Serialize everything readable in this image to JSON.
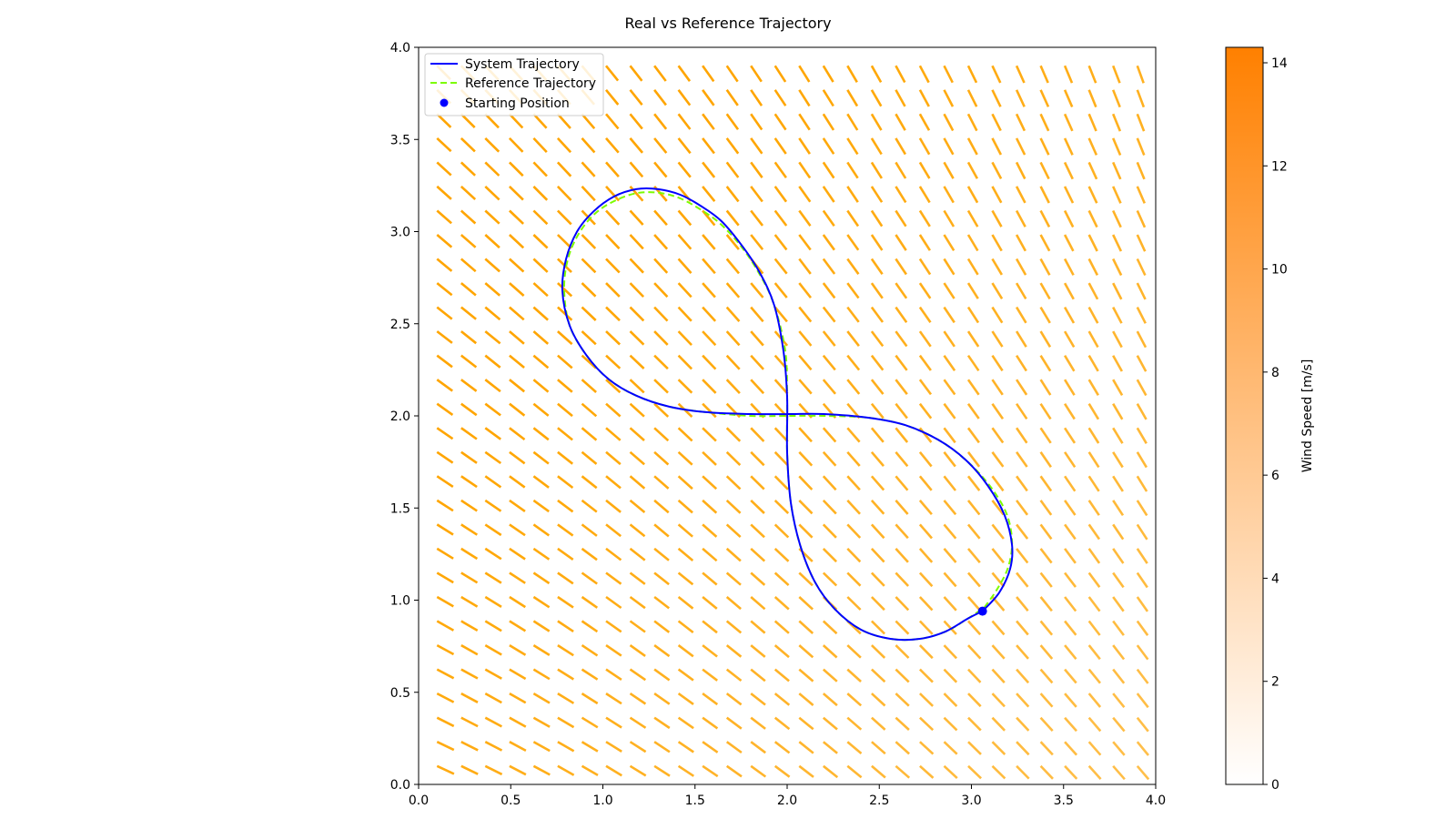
{
  "chart_data": {
    "type": "line",
    "title": "Real vs Reference Trajectory",
    "xlabel": "",
    "ylabel": "",
    "xlim": [
      0.0,
      4.0
    ],
    "ylim": [
      0.0,
      4.0
    ],
    "xticks": [
      "0.0",
      "0.5",
      "1.0",
      "1.5",
      "2.0",
      "2.5",
      "3.0",
      "3.5",
      "4.0"
    ],
    "yticks": [
      "0.0",
      "0.5",
      "1.0",
      "1.5",
      "2.0",
      "2.5",
      "3.0",
      "3.5",
      "4.0"
    ],
    "grid": false,
    "legend": {
      "placement": "top-left",
      "entries": [
        "System Trajectory",
        "Reference Trajectory",
        "Starting Position"
      ]
    },
    "series": [
      {
        "name": "System Trajectory",
        "style": "solid",
        "color": "#0000ff",
        "x": [
          3.06,
          3.15,
          3.21,
          3.22,
          3.18,
          3.09,
          2.97,
          2.82,
          2.64,
          2.44,
          2.2,
          2.0,
          1.8,
          1.56,
          1.36,
          1.18,
          1.03,
          0.91,
          0.82,
          0.78,
          0.8,
          0.86,
          0.95,
          1.06,
          1.18,
          1.3,
          1.42,
          1.53,
          1.64,
          1.75,
          1.85,
          1.93,
          1.98,
          2.0,
          2.0,
          2.02,
          2.07,
          2.15,
          2.26,
          2.4,
          2.56,
          2.72,
          2.86,
          2.98,
          3.06
        ],
        "y": [
          0.94,
          1.04,
          1.17,
          1.3,
          1.46,
          1.62,
          1.76,
          1.87,
          1.95,
          1.99,
          2.01,
          2.01,
          2.01,
          2.02,
          2.05,
          2.11,
          2.2,
          2.33,
          2.49,
          2.68,
          2.85,
          3.0,
          3.11,
          3.19,
          3.23,
          3.23,
          3.2,
          3.14,
          3.06,
          2.93,
          2.78,
          2.6,
          2.35,
          2.1,
          1.8,
          1.53,
          1.3,
          1.1,
          0.95,
          0.84,
          0.79,
          0.79,
          0.83,
          0.9,
          0.94
        ]
      },
      {
        "name": "Reference Trajectory",
        "style": "dashed",
        "color": "#7cfc00",
        "x": [
          3.07,
          3.14,
          3.2,
          3.22,
          3.19,
          3.1,
          2.97,
          2.82,
          2.64,
          2.44,
          2.2,
          2.0,
          1.8,
          1.56,
          1.36,
          1.18,
          1.03,
          0.91,
          0.82,
          0.79,
          0.81,
          0.87,
          0.96,
          1.07,
          1.19,
          1.31,
          1.42,
          1.53,
          1.64,
          1.75,
          1.85,
          1.93,
          1.99,
          2.0,
          2.0,
          2.02,
          2.07,
          2.15,
          2.26,
          2.4,
          2.56,
          2.72,
          2.86,
          2.98,
          3.07
        ],
        "y": [
          0.96,
          1.06,
          1.18,
          1.32,
          1.47,
          1.62,
          1.76,
          1.87,
          1.95,
          1.99,
          2.0,
          2.0,
          2.0,
          2.02,
          2.05,
          2.11,
          2.2,
          2.33,
          2.49,
          2.68,
          2.85,
          2.99,
          3.1,
          3.17,
          3.21,
          3.21,
          3.18,
          3.12,
          3.04,
          2.92,
          2.77,
          2.6,
          2.35,
          2.1,
          1.8,
          1.53,
          1.3,
          1.1,
          0.95,
          0.84,
          0.79,
          0.79,
          0.83,
          0.9,
          0.96
        ]
      }
    ],
    "start_point": {
      "name": "Starting Position",
      "x": 3.06,
      "y": 0.94,
      "color": "#0000ff"
    },
    "wind_field": {
      "type": "quiver",
      "grid_x": [
        0.1,
        3.9,
        30
      ],
      "grid_y": [
        0.1,
        3.9,
        30
      ],
      "color": "#ffa500",
      "direction": "angle from x-axis varies from -25° at lower-left to -70° at upper-right",
      "speed": "increases toward the left and top"
    },
    "colorbar": {
      "label": "Wind Speed [m/s]",
      "range": [
        0,
        14.3
      ],
      "ticks": [
        "0",
        "2",
        "4",
        "6",
        "8",
        "10",
        "12",
        "14"
      ],
      "colors": [
        "#ffffff",
        "#ff8000"
      ]
    }
  }
}
